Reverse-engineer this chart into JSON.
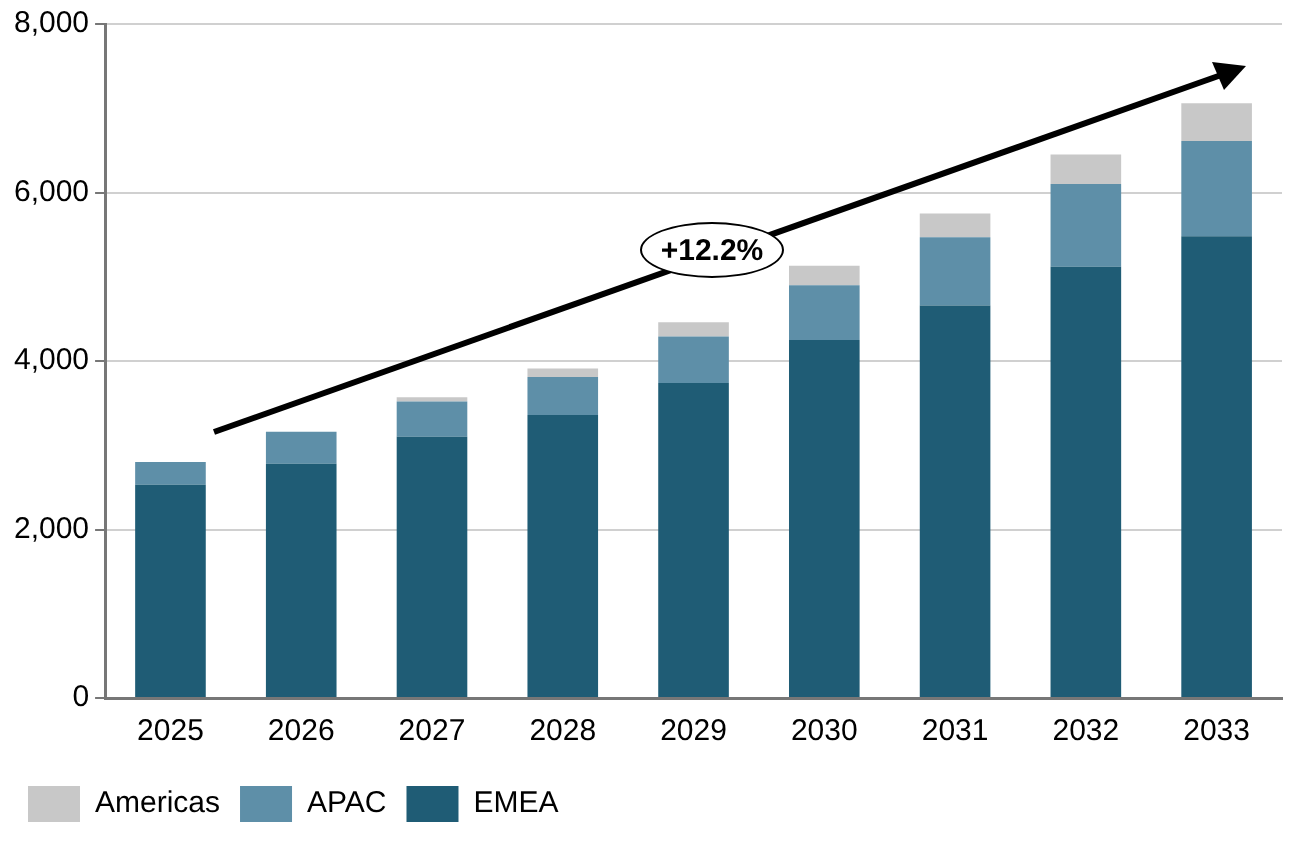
{
  "chart_data": {
    "type": "bar",
    "stacked": true,
    "categories": [
      "2025",
      "2026",
      "2027",
      "2028",
      "2029",
      "2030",
      "2031",
      "2032",
      "2033"
    ],
    "series": [
      {
        "name": "EMEA",
        "color": "#1f5c75",
        "values": [
          2530,
          2780,
          3100,
          3360,
          3740,
          4250,
          4660,
          5120,
          5480
        ]
      },
      {
        "name": "APAC",
        "color": "#5e8fa8",
        "values": [
          270,
          380,
          420,
          450,
          550,
          650,
          810,
          980,
          1130
        ]
      },
      {
        "name": "Americas",
        "color": "#c8c8c8",
        "values": [
          0,
          0,
          50,
          100,
          170,
          230,
          280,
          350,
          450
        ]
      }
    ],
    "ylim": [
      0,
      8000
    ],
    "yticks": [
      0,
      {
        "value": 2000,
        "label": "2,000"
      },
      {
        "value": 4000,
        "label": "4,000"
      },
      {
        "value": 6000,
        "label": "6,000"
      },
      {
        "value": 8000,
        "label": "8,000"
      }
    ],
    "grid": "y",
    "legend": "bottom left",
    "annotations": [
      "+12.2%"
    ]
  }
}
